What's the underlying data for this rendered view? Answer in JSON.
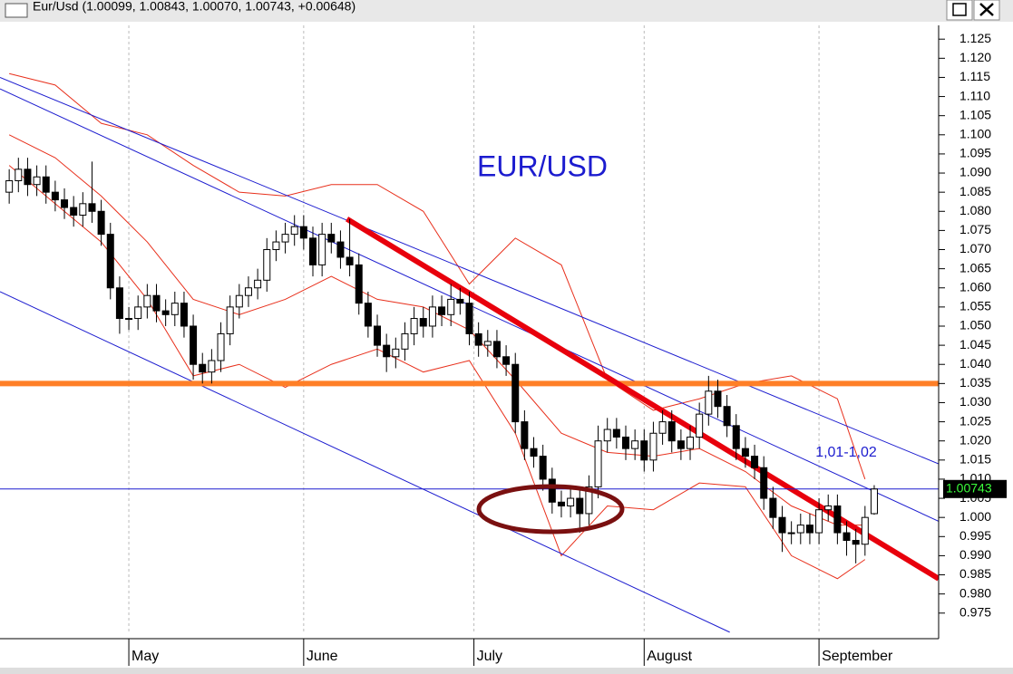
{
  "window_title": "Eur/Usd (1.00099, 1.00843, 1.00070, 1.00743, +0.00648)",
  "chart_data": {
    "type": "candlestick",
    "open": [
      1.085,
      1.088,
      1.091,
      1.087,
      1.089,
      1.085,
      1.083,
      1.081,
      1.079,
      1.082,
      1.08,
      1.074,
      1.06,
      1.052,
      1.052,
      1.055,
      1.058,
      1.054,
      1.053,
      1.056,
      1.05,
      1.04,
      1.038,
      1.041,
      1.048,
      1.055,
      1.058,
      1.06,
      1.062,
      1.07,
      1.072,
      1.074,
      1.076,
      1.073,
      1.066,
      1.074,
      1.072,
      1.068,
      1.066,
      1.056,
      1.05,
      1.045,
      1.042,
      1.044,
      1.048,
      1.052,
      1.05,
      1.055,
      1.053,
      1.057,
      1.056,
      1.048,
      1.045,
      1.046,
      1.042,
      1.04,
      1.025,
      1.018,
      1.016,
      1.01,
      1.004,
      1.003,
      1.005,
      1.001,
      1.008,
      1.02,
      1.023,
      1.021,
      1.018,
      1.02,
      1.015,
      1.022,
      1.025,
      1.02,
      1.018,
      1.021,
      1.027,
      1.033,
      1.029,
      1.024,
      1.018,
      1.016,
      1.013,
      1.005,
      1.0,
      0.996,
      0.996,
      0.998,
      0.996,
      1.002,
      1.003,
      0.996,
      0.994,
      0.993,
      1.00099
    ],
    "high": [
      1.091,
      1.094,
      1.094,
      1.092,
      1.092,
      1.088,
      1.086,
      1.084,
      1.085,
      1.093,
      1.083,
      1.077,
      1.063,
      1.055,
      1.058,
      1.061,
      1.061,
      1.057,
      1.059,
      1.059,
      1.053,
      1.043,
      1.044,
      1.051,
      1.058,
      1.061,
      1.063,
      1.065,
      1.073,
      1.075,
      1.077,
      1.079,
      1.079,
      1.076,
      1.077,
      1.077,
      1.075,
      1.078,
      1.069,
      1.059,
      1.053,
      1.048,
      1.047,
      1.051,
      1.055,
      1.055,
      1.058,
      1.058,
      1.061,
      1.06,
      1.059,
      1.051,
      1.049,
      1.049,
      1.045,
      1.043,
      1.028,
      1.021,
      1.019,
      1.013,
      1.007,
      1.008,
      1.008,
      1.011,
      1.024,
      1.026,
      1.026,
      1.024,
      1.023,
      1.023,
      1.025,
      1.028,
      1.028,
      1.023,
      1.024,
      1.03,
      1.037,
      1.036,
      1.032,
      1.027,
      1.021,
      1.019,
      1.016,
      1.008,
      1.003,
      0.999,
      1.001,
      1.001,
      1.005,
      1.006,
      1.006,
      0.999,
      0.997,
      1.003,
      1.00843
    ],
    "low": [
      1.082,
      1.085,
      1.084,
      1.084,
      1.082,
      1.08,
      1.078,
      1.076,
      1.076,
      1.077,
      1.071,
      1.057,
      1.048,
      1.049,
      1.049,
      1.052,
      1.051,
      1.05,
      1.05,
      1.047,
      1.036,
      1.035,
      1.035,
      1.038,
      1.045,
      1.052,
      1.055,
      1.057,
      1.059,
      1.067,
      1.069,
      1.071,
      1.07,
      1.063,
      1.063,
      1.069,
      1.065,
      1.063,
      1.053,
      1.047,
      1.042,
      1.038,
      1.039,
      1.041,
      1.045,
      1.047,
      1.047,
      1.05,
      1.05,
      1.053,
      1.045,
      1.042,
      1.042,
      1.039,
      1.037,
      1.022,
      1.015,
      1.013,
      1.007,
      1.001,
      1.0,
      1.0,
      0.996,
      0.998,
      1.005,
      1.017,
      1.018,
      1.015,
      1.015,
      1.012,
      1.012,
      1.019,
      1.017,
      1.015,
      1.015,
      1.018,
      1.024,
      1.026,
      1.021,
      1.015,
      1.013,
      1.01,
      1.002,
      0.997,
      0.991,
      0.993,
      0.993,
      0.993,
      0.993,
      0.999,
      0.993,
      0.99,
      0.988,
      0.99,
      1.0007
    ],
    "close": [
      1.088,
      1.091,
      1.087,
      1.089,
      1.085,
      1.083,
      1.081,
      1.079,
      1.082,
      1.08,
      1.074,
      1.06,
      1.052,
      1.052,
      1.055,
      1.058,
      1.054,
      1.053,
      1.056,
      1.05,
      1.04,
      1.038,
      1.041,
      1.048,
      1.055,
      1.058,
      1.06,
      1.062,
      1.07,
      1.072,
      1.074,
      1.076,
      1.073,
      1.066,
      1.074,
      1.072,
      1.068,
      1.066,
      1.056,
      1.05,
      1.045,
      1.042,
      1.044,
      1.048,
      1.052,
      1.05,
      1.055,
      1.053,
      1.057,
      1.056,
      1.048,
      1.045,
      1.046,
      1.042,
      1.04,
      1.025,
      1.018,
      1.016,
      1.01,
      1.004,
      1.003,
      1.005,
      1.001,
      1.008,
      1.02,
      1.023,
      1.021,
      1.018,
      1.02,
      1.015,
      1.022,
      1.025,
      1.02,
      1.018,
      1.021,
      1.027,
      1.033,
      1.029,
      1.024,
      1.018,
      1.016,
      1.013,
      1.005,
      1.0,
      0.996,
      0.996,
      0.998,
      0.996,
      1.002,
      1.003,
      0.996,
      0.994,
      0.993,
      1.0,
      1.00743
    ],
    "up_color": "#ffffff",
    "down_color": "#000000",
    "xlim": [
      -1,
      101
    ],
    "xticks": [
      {
        "value": 13,
        "label": "May"
      },
      {
        "value": 32,
        "label": "June"
      },
      {
        "value": 50.5,
        "label": "July"
      },
      {
        "value": 69,
        "label": "August"
      },
      {
        "value": 88,
        "label": "September"
      }
    ],
    "ylim": [
      0.9695,
      1.1286
    ],
    "yticks": [
      1.125,
      {
        "value": 1.12,
        "label": "1.120"
      },
      1.115,
      {
        "value": 1.11,
        "label": "1.110"
      },
      1.105,
      {
        "value": 1.1,
        "label": "1.100"
      },
      1.095,
      {
        "value": 1.09,
        "label": "1.090"
      },
      1.085,
      {
        "value": 1.08,
        "label": "1.080"
      },
      1.075,
      {
        "value": 1.07,
        "label": "1.070"
      },
      1.065,
      {
        "value": 1.06,
        "label": "1.060"
      },
      1.055,
      {
        "value": 1.05,
        "label": "1.050"
      },
      1.045,
      {
        "value": 1.04,
        "label": "1.040"
      },
      1.035,
      {
        "value": 1.03,
        "label": "1.030"
      },
      1.025,
      {
        "value": 1.02,
        "label": "1.020"
      },
      1.015,
      {
        "value": 1.01,
        "label": "1.010"
      },
      1.005,
      {
        "value": 1,
        "label": "1.000"
      },
      0.995,
      {
        "value": 0.99,
        "label": "0.990"
      },
      0.985,
      {
        "value": 0.98,
        "label": "0.980"
      },
      0.975
    ],
    "grid": "x",
    "last_price": 1.00743,
    "last_price_color": "#1c1ccf",
    "lines": [
      {
        "color": "#e8301c",
        "width": 1,
        "x": [
          0,
          5,
          10,
          15,
          20,
          25,
          30,
          35,
          40,
          45,
          50,
          55,
          60,
          65,
          70,
          75,
          80,
          85,
          90,
          93
        ],
        "y": [
          1.116,
          1.113,
          1.103,
          1.1,
          1.092,
          1.085,
          1.084,
          1.087,
          1.087,
          1.08,
          1.061,
          1.073,
          1.066,
          1.036,
          1.028,
          1.031,
          1.035,
          1.037,
          1.031,
          1.01
        ]
      },
      {
        "color": "#e8301c",
        "width": 1,
        "x": [
          0,
          5,
          10,
          15,
          20,
          25,
          30,
          35,
          40,
          45,
          50,
          55,
          60,
          65,
          70,
          75,
          80,
          85,
          90,
          93
        ],
        "y": [
          1.1,
          1.094,
          1.084,
          1.072,
          1.057,
          1.053,
          1.057,
          1.063,
          1.057,
          1.055,
          1.049,
          1.036,
          1.022,
          1.017,
          1.016,
          1.018,
          1.012,
          1.003,
          0.998,
          0.998
        ]
      },
      {
        "color": "#e8301c",
        "width": 1,
        "x": [
          0,
          5,
          10,
          15,
          20,
          25,
          30,
          35,
          40,
          45,
          50,
          55,
          60,
          65,
          70,
          75,
          80,
          85,
          90,
          93
        ],
        "y": [
          1.092,
          1.082,
          1.072,
          1.057,
          1.037,
          1.04,
          1.034,
          1.04,
          1.044,
          1.038,
          1.041,
          1.022,
          0.99,
          1.003,
          1.002,
          1.009,
          1.008,
          0.99,
          0.984,
          0.989
        ]
      },
      {
        "color": "#1c1ccf",
        "width": 1,
        "x": [
          -1,
          101
        ],
        "y": [
          1.115,
          1.014
        ]
      },
      {
        "color": "#1c1ccf",
        "width": 1,
        "x": [
          -1,
          101
        ],
        "y": [
          1.112,
          0.999
        ]
      },
      {
        "color": "#1c1ccf",
        "width": 1,
        "x": [
          -1,
          78.3
        ],
        "y": [
          1.059,
          0.97
        ]
      },
      {
        "color": "#ff7f27",
        "width": 6,
        "x": [
          -1,
          101
        ],
        "y": [
          1.035,
          1.035
        ]
      },
      {
        "color": "#e8000c",
        "width": 6,
        "x": [
          36.7,
          101
        ],
        "y": [
          1.078,
          0.984
        ]
      }
    ],
    "annotations": [
      "EUR/USD",
      "1,01-1,02"
    ]
  }
}
